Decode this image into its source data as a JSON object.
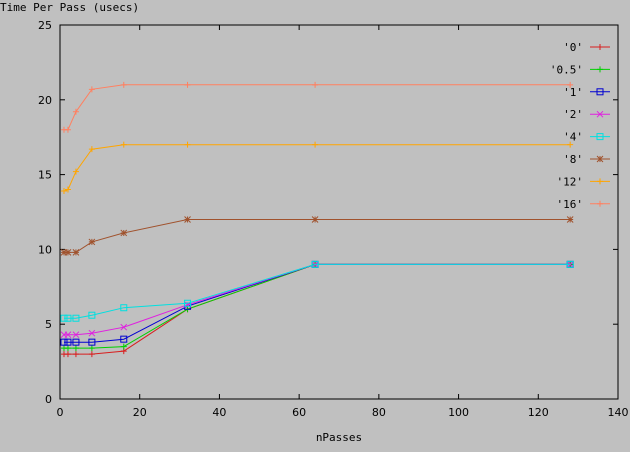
{
  "chart_data": {
    "type": "line",
    "ylabel": "Time Per Pass (usecs)",
    "xlabel": "nPasses",
    "xlim": [
      0,
      140
    ],
    "ylim": [
      0,
      25
    ],
    "xticks": [
      0,
      20,
      40,
      60,
      80,
      100,
      120,
      140
    ],
    "yticks": [
      0,
      5,
      10,
      15,
      20,
      25
    ],
    "grid": false,
    "legend": "top-right",
    "series": [
      {
        "name": "'0'",
        "color": "#d81e1e",
        "marker": "plus",
        "x": [
          1,
          2,
          4,
          8,
          16,
          32,
          64,
          128
        ],
        "y": [
          3.0,
          3.0,
          3.0,
          3.0,
          3.2,
          6.0,
          9.0,
          9.0
        ]
      },
      {
        "name": "'0.5'",
        "color": "#00d000",
        "marker": "plus",
        "x": [
          1,
          2,
          4,
          8,
          16,
          32,
          64,
          128
        ],
        "y": [
          3.4,
          3.4,
          3.4,
          3.4,
          3.5,
          6.0,
          9.0,
          9.0
        ]
      },
      {
        "name": "'1'",
        "color": "#0000d0",
        "marker": "square",
        "x": [
          1,
          2,
          4,
          8,
          16,
          32,
          64,
          128
        ],
        "y": [
          3.8,
          3.8,
          3.8,
          3.8,
          4.0,
          6.2,
          9.0,
          9.0
        ]
      },
      {
        "name": "'2'",
        "color": "#e020e0",
        "marker": "cross",
        "x": [
          1,
          2,
          4,
          8,
          16,
          32,
          64,
          128
        ],
        "y": [
          4.3,
          4.3,
          4.3,
          4.4,
          4.8,
          6.3,
          9.0,
          9.0
        ]
      },
      {
        "name": "'4'",
        "color": "#00e0e0",
        "marker": "square",
        "x": [
          1,
          2,
          4,
          8,
          16,
          32,
          64,
          128
        ],
        "y": [
          5.4,
          5.4,
          5.4,
          5.6,
          6.1,
          6.4,
          9.0,
          9.0
        ]
      },
      {
        "name": "'8'",
        "color": "#a0522d",
        "marker": "star",
        "x": [
          1,
          2,
          4,
          8,
          16,
          32,
          64,
          128
        ],
        "y": [
          9.8,
          9.8,
          9.8,
          10.5,
          11.1,
          12.0,
          12.0,
          12.0
        ]
      },
      {
        "name": "'12'",
        "color": "#ffa500",
        "marker": "plus",
        "x": [
          1,
          2,
          4,
          8,
          16,
          32,
          64,
          128
        ],
        "y": [
          13.9,
          14.0,
          15.2,
          16.7,
          17.0,
          17.0,
          17.0,
          17.0
        ]
      },
      {
        "name": "'16'",
        "color": "#ff8060",
        "marker": "plus",
        "x": [
          1,
          2,
          4,
          8,
          16,
          32,
          64,
          128
        ],
        "y": [
          18.0,
          18.0,
          19.2,
          20.7,
          21.0,
          21.0,
          21.0,
          21.0
        ]
      }
    ]
  }
}
